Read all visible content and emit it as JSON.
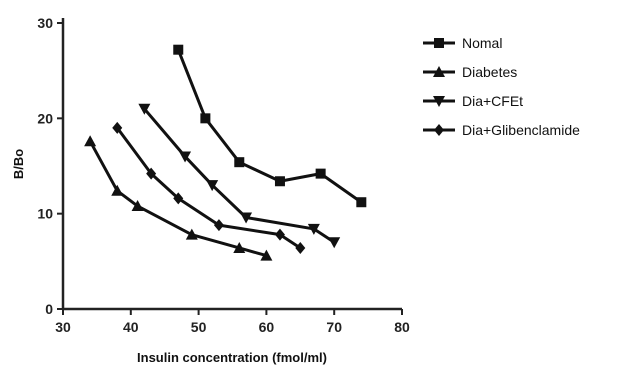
{
  "chart_data": {
    "type": "line",
    "title": "",
    "xlabel": "Insulin concentration (fmol/ml)",
    "ylabel": "B/Bo",
    "xlim": [
      30,
      80
    ],
    "ylim": [
      0,
      30
    ],
    "xticks": [
      30,
      40,
      50,
      60,
      70,
      80
    ],
    "yticks": [
      0,
      10,
      20,
      30
    ],
    "grid": false,
    "legend_position": "right",
    "series": [
      {
        "name": "Nomal",
        "marker": "square",
        "x": [
          47,
          51,
          56,
          62,
          68,
          74
        ],
        "y": [
          27.2,
          20.0,
          15.4,
          13.4,
          14.2,
          11.2
        ]
      },
      {
        "name": "Diabetes",
        "marker": "triangle-up",
        "x": [
          34,
          38,
          41,
          49,
          56,
          60
        ],
        "y": [
          17.6,
          12.4,
          10.8,
          7.8,
          6.4,
          5.6
        ]
      },
      {
        "name": "Dia+CFEt",
        "marker": "triangle-down",
        "x": [
          42,
          48,
          52,
          57,
          67,
          70
        ],
        "y": [
          21.0,
          16.0,
          13.0,
          9.6,
          8.4,
          7.0
        ]
      },
      {
        "name": "Dia+Glibenclamide",
        "marker": "diamond",
        "x": [
          38,
          43,
          47,
          53,
          62,
          65
        ],
        "y": [
          19.0,
          14.2,
          11.6,
          8.8,
          7.8,
          6.4
        ]
      }
    ]
  }
}
